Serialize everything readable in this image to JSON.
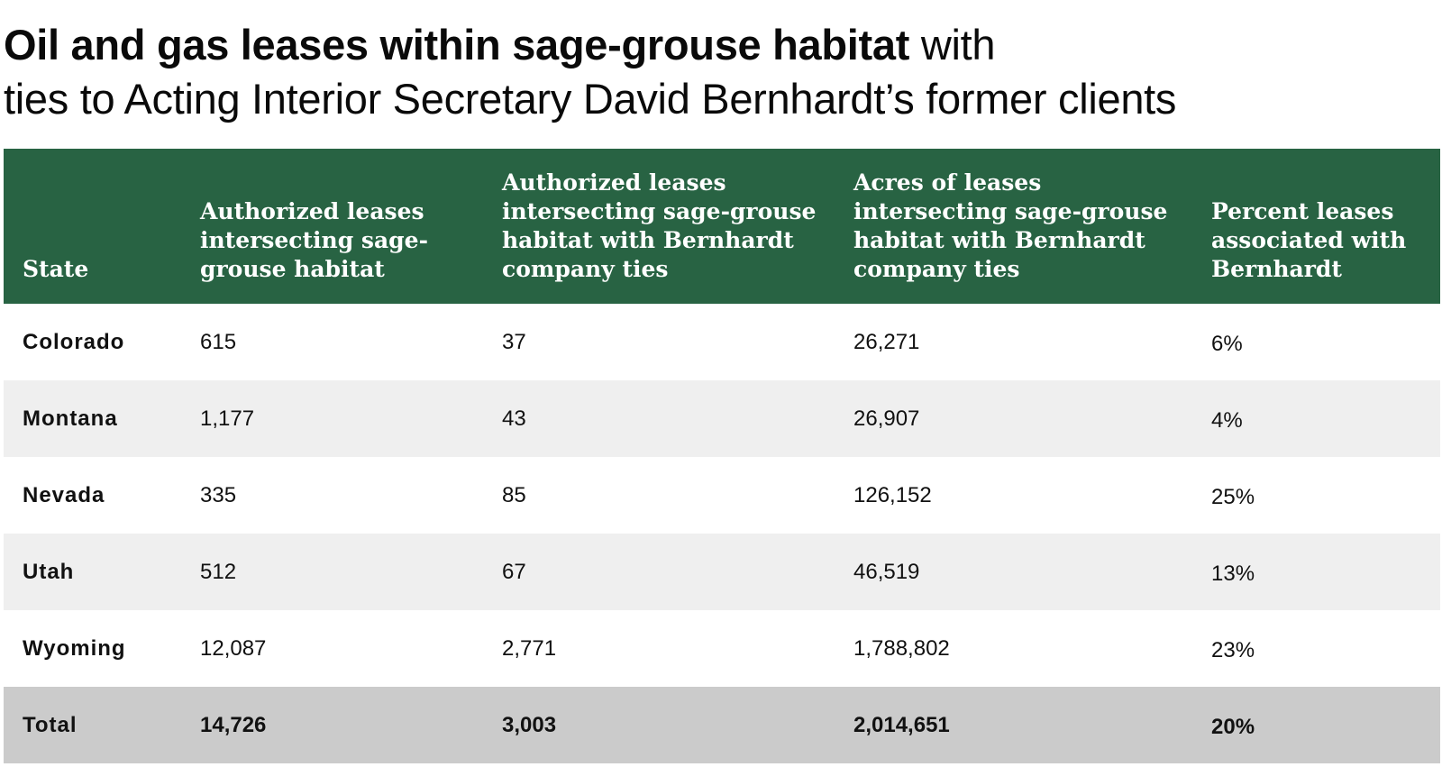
{
  "title": {
    "bold": "Oil and gas leases within sage-grouse habitat",
    "rest_line1": " with",
    "line2": "ties to Acting Interior Secretary David Bernhardt’s former clients"
  },
  "table": {
    "headers": [
      "State",
      "Authorized leases intersecting sage-grouse habitat",
      "Authorized leases intersecting sage-grouse habitat with Bernhardt company ties",
      "Acres of leases intersecting sage-grouse habitat with Bernhardt company ties",
      "Percent leases associated with Bernhardt"
    ],
    "rows": [
      [
        "Colorado",
        "615",
        "37",
        "26,271",
        "6%"
      ],
      [
        "Montana",
        "1,177",
        "43",
        "26,907",
        "4%"
      ],
      [
        "Nevada",
        "335",
        "85",
        "126,152",
        "25%"
      ],
      [
        "Utah",
        "512",
        "67",
        "46,519",
        "13%"
      ],
      [
        "Wyoming",
        "12,087",
        "2,771",
        "1,788,802",
        "23%"
      ]
    ],
    "total": [
      "Total",
      "14,726",
      "3,003",
      "2,014,651",
      "20%"
    ]
  },
  "colors": {
    "header_bg": "#286343",
    "alt_row_bg": "#efefef",
    "total_row_bg": "#cbcbcb"
  }
}
